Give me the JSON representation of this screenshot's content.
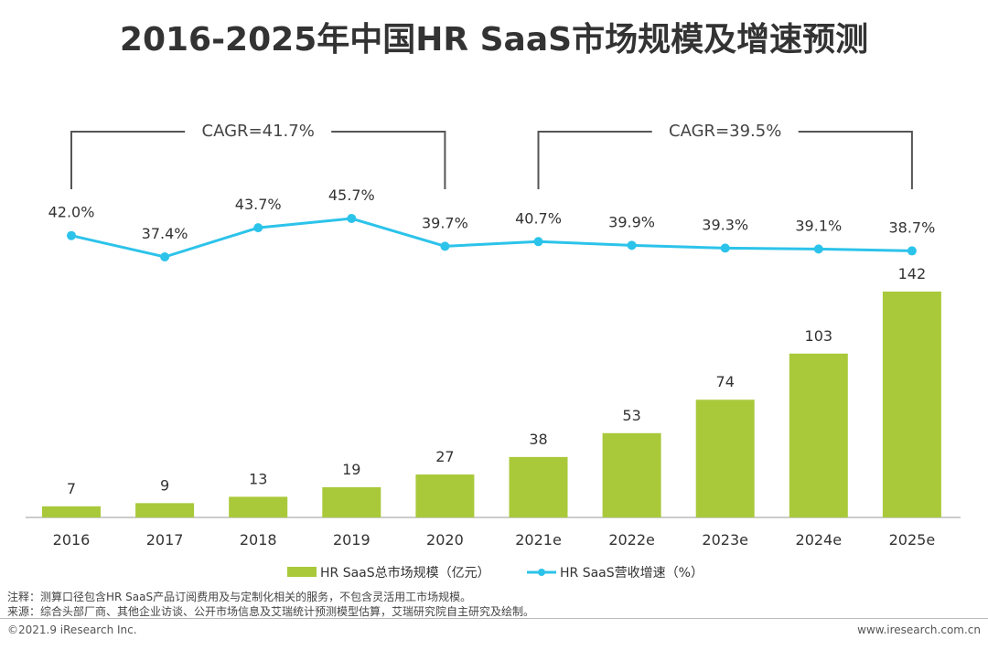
{
  "chart_data": {
    "type": "bar+line",
    "title": "2016-2025年中国HR SaaS市场规模及增速预测",
    "categories": [
      "2016",
      "2017",
      "2018",
      "2019",
      "2020",
      "2021e",
      "2022e",
      "2023e",
      "2024e",
      "2025e"
    ],
    "series": [
      {
        "name": "HR SaaS总市场规模（亿元）",
        "type": "bar",
        "color": "#a9c93a",
        "values": [
          7,
          9,
          13,
          19,
          27,
          38,
          53,
          74,
          103,
          142
        ]
      },
      {
        "name": "HR SaaS营收增速（%）",
        "type": "line",
        "color": "#2cc3ea",
        "values": [
          42.0,
          37.4,
          43.7,
          45.7,
          39.7,
          40.7,
          39.9,
          39.3,
          39.1,
          38.7
        ],
        "labels": [
          "42.0%",
          "37.4%",
          "43.7%",
          "45.7%",
          "39.7%",
          "40.7%",
          "39.9%",
          "39.3%",
          "39.1%",
          "38.7%"
        ]
      }
    ],
    "annotations": [
      {
        "text": "CAGR=41.7%",
        "from": "2016",
        "to": "2020"
      },
      {
        "text": "CAGR=39.5%",
        "from": "2021e",
        "to": "2025e"
      }
    ],
    "legend": "bottom",
    "grid": false
  },
  "footer": {
    "note": "注释：测算口径包含HR SaaS产品订阅费用及与定制化相关的服务，不包含灵活用工市场规模。",
    "source": "来源：综合头部厂商、其他企业访谈、公开市场信息及艾瑞统计预测模型估算，艾瑞研究院自主研究及绘制。",
    "copyright": "©2021.9 iResearch Inc.",
    "website": "www.iresearch.com.cn"
  }
}
